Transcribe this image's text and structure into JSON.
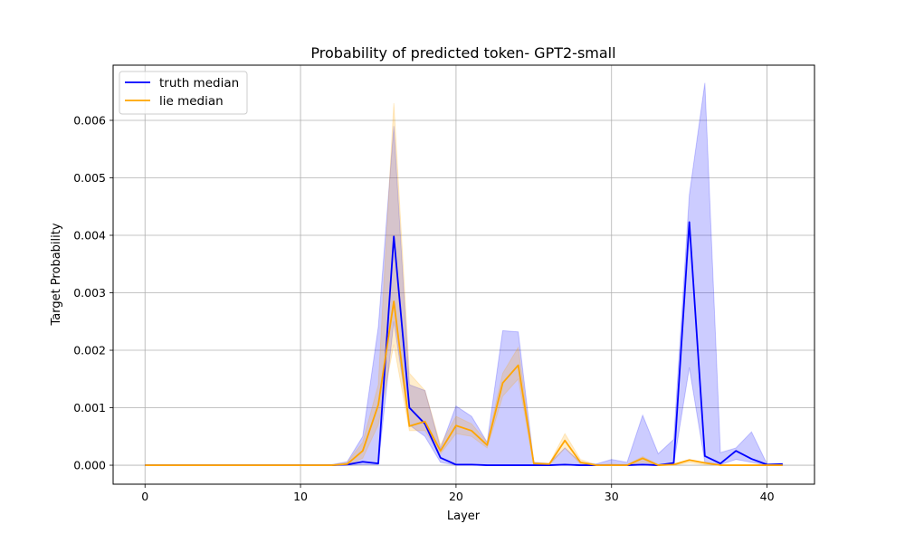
{
  "chart_data": {
    "type": "line",
    "title": "Probability of predicted token- GPT2-small",
    "xlabel": "Layer",
    "ylabel": "Target Probability",
    "xlim": [
      -2.05,
      43.05
    ],
    "ylim": [
      -0.00033,
      0.00696
    ],
    "xticks": [
      0,
      10,
      20,
      30,
      40
    ],
    "yticks": [
      0.0,
      0.001,
      0.002,
      0.003,
      0.004,
      0.005,
      0.006
    ],
    "ytick_labels": [
      "0.000",
      "0.001",
      "0.002",
      "0.003",
      "0.004",
      "0.005",
      "0.006"
    ],
    "grid": true,
    "legend_position": "top-left",
    "x": [
      0,
      1,
      2,
      3,
      4,
      5,
      6,
      7,
      8,
      9,
      10,
      11,
      12,
      13,
      14,
      15,
      16,
      17,
      18,
      19,
      20,
      21,
      22,
      23,
      24,
      25,
      26,
      27,
      28,
      29,
      30,
      31,
      32,
      33,
      34,
      35,
      36,
      37,
      38,
      39,
      40,
      41
    ],
    "series": [
      {
        "name": "truth median",
        "color": "#0000ff",
        "band_color": "#0000ff",
        "values": [
          0,
          0,
          0,
          0,
          0,
          0,
          0,
          0,
          0,
          0,
          0,
          0,
          0,
          1e-05,
          6e-05,
          3e-05,
          0.00398,
          0.001,
          0.00072,
          0.00013,
          1e-05,
          1e-05,
          0,
          0,
          0,
          0,
          0,
          1e-05,
          0,
          0,
          0,
          0,
          1e-05,
          0,
          4e-05,
          0.00423,
          0.00016,
          3e-05,
          0.00025,
          0.00011,
          1e-05,
          2e-05
        ],
        "lower": [
          0,
          0,
          0,
          0,
          0,
          0,
          0,
          0,
          0,
          0,
          0,
          0,
          0,
          0,
          1e-05,
          1e-05,
          0.0025,
          0.0007,
          0.0005,
          5e-05,
          0,
          0,
          0,
          0,
          0,
          0,
          0,
          0,
          0,
          0,
          0,
          0,
          0,
          0,
          2e-05,
          0.0017,
          5e-05,
          1e-05,
          0.0001,
          5e-05,
          0,
          0
        ],
        "upper": [
          0,
          0,
          0,
          0,
          0,
          0,
          0,
          0,
          0,
          0,
          0,
          0,
          1e-05,
          6e-05,
          0.0005,
          0.0024,
          0.0059,
          0.0014,
          0.0013,
          0.0003,
          0.00103,
          0.00085,
          0.0004,
          0.00234,
          0.00232,
          5e-05,
          3e-05,
          0.0003,
          5e-05,
          2e-05,
          0.0001,
          5e-05,
          0.00087,
          0.0002,
          0.00045,
          0.0047,
          0.00665,
          0.00022,
          0.0003,
          0.00058,
          2e-05,
          3e-05
        ]
      },
      {
        "name": "lie median",
        "color": "#ffa500",
        "band_color": "#ffa500",
        "values": [
          0,
          0,
          0,
          0,
          0,
          0,
          0,
          0,
          0,
          0,
          0,
          0,
          0,
          2e-05,
          0.00025,
          0.00105,
          0.00285,
          0.00068,
          0.00076,
          0.00025,
          0.00069,
          0.0006,
          0.00035,
          0.00143,
          0.00174,
          3e-05,
          2e-05,
          0.00043,
          5e-05,
          0,
          0,
          0,
          0.00012,
          0,
          1e-05,
          9e-05,
          4e-05,
          0,
          0,
          0,
          0,
          0
        ],
        "lower": [
          0,
          0,
          0,
          0,
          0,
          0,
          0,
          0,
          0,
          0,
          0,
          0,
          0,
          0,
          0.00012,
          0.0007,
          0.0021,
          0.0006,
          0.0006,
          0.0002,
          0.00055,
          0.0005,
          0.0003,
          0.0012,
          0.0015,
          1e-05,
          0,
          0.0003,
          2e-05,
          0,
          0,
          0,
          5e-05,
          0,
          0,
          4e-05,
          1e-05,
          0,
          0,
          0,
          0,
          0
        ],
        "upper": [
          0,
          0,
          0,
          0,
          0,
          0,
          0,
          0,
          0,
          0,
          0,
          0,
          0,
          5e-05,
          0.0004,
          0.0014,
          0.0063,
          0.0016,
          0.0013,
          0.00035,
          0.00085,
          0.00072,
          0.0004,
          0.0016,
          0.00205,
          5e-05,
          3e-05,
          0.00055,
          0.0001,
          1e-05,
          2e-05,
          1e-05,
          0.00015,
          1e-05,
          2e-05,
          0.0001,
          5e-05,
          0,
          0,
          0,
          0,
          0
        ]
      }
    ]
  }
}
